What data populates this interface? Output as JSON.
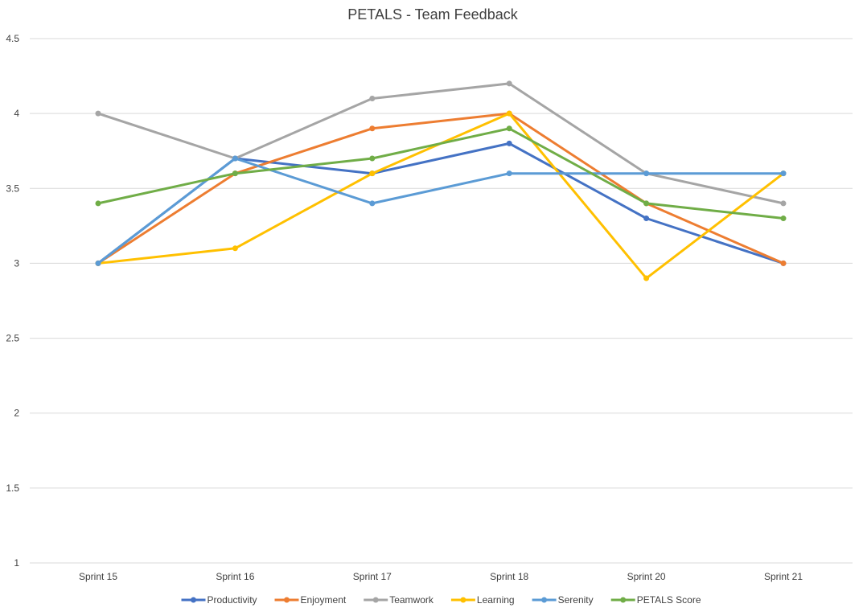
{
  "chart_data": {
    "type": "line",
    "title": "PETALS - Team Feedback",
    "xlabel": "",
    "ylabel": "",
    "categories": [
      "Sprint 15",
      "Sprint 16",
      "Sprint 17",
      "Sprint 18",
      "Sprint 20",
      "Sprint 21"
    ],
    "ylim": [
      1,
      4.5
    ],
    "yticks": [
      "1",
      "1.5",
      "2",
      "2.5",
      "3",
      "3.5",
      "4",
      "4.5"
    ],
    "grid": true,
    "legend_position": "bottom",
    "series": [
      {
        "name": "Productivity",
        "color": "#4472c4",
        "values": [
          3.0,
          3.7,
          3.6,
          3.8,
          3.3,
          3.0
        ]
      },
      {
        "name": "Enjoyment",
        "color": "#ed7d31",
        "values": [
          3.0,
          3.6,
          3.9,
          4.0,
          3.4,
          3.0
        ]
      },
      {
        "name": "Teamwork",
        "color": "#a5a5a5",
        "values": [
          4.0,
          3.7,
          4.1,
          4.2,
          3.6,
          3.4
        ]
      },
      {
        "name": "Learning",
        "color": "#ffc000",
        "values": [
          3.0,
          3.1,
          3.6,
          4.0,
          2.9,
          3.6
        ]
      },
      {
        "name": "Serenity",
        "color": "#5b9bd5",
        "values": [
          3.0,
          3.7,
          3.4,
          3.6,
          3.6,
          3.6
        ]
      },
      {
        "name": "PETALS Score",
        "color": "#70ad47",
        "values": [
          3.4,
          3.6,
          3.7,
          3.9,
          3.4,
          3.3
        ]
      }
    ]
  }
}
